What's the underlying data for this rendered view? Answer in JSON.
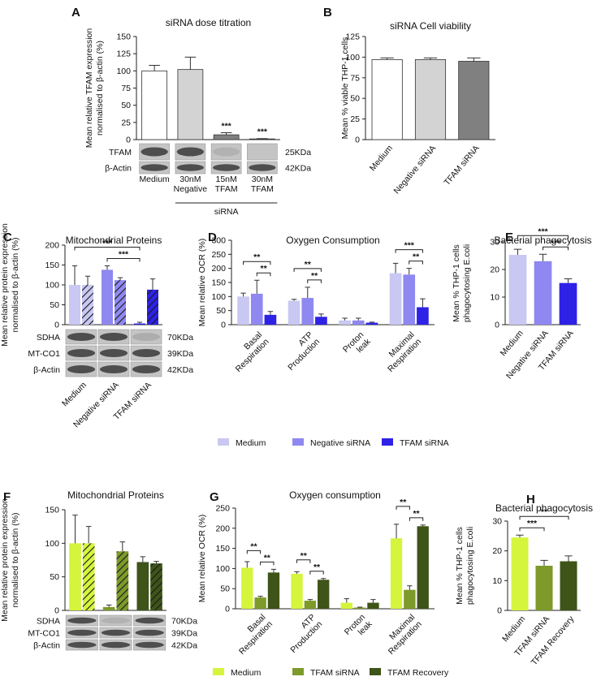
{
  "chart_data": [
    {
      "type": "bar",
      "panel": "A",
      "title": "siRNA dose titration",
      "ylabel": [
        "Mean relative TFAM expression",
        "normalised to β-actin (%)"
      ],
      "categories": [
        [
          "Medium"
        ],
        [
          "30nM",
          "Negative"
        ],
        [
          "15nM",
          "TFAM"
        ],
        [
          "30nM",
          "TFAM"
        ]
      ],
      "group_label": "siRNA",
      "colors": [
        "#ffffff",
        "#d3d3d3",
        "#808080",
        "#404040"
      ],
      "series": [
        {
          "values": [
            100,
            102,
            7,
            1
          ],
          "errors": [
            8,
            18,
            3,
            0.5
          ],
          "significance": [
            null,
            null,
            "***",
            "***"
          ]
        }
      ],
      "ylim": [
        0,
        150
      ],
      "yticks": [
        0,
        25,
        50,
        75,
        100,
        125,
        150
      ],
      "blot": {
        "rows": [
          "TFAM",
          "β-Actin"
        ],
        "sizes": [
          "25KDa",
          "42KDa"
        ]
      }
    },
    {
      "type": "bar",
      "panel": "B",
      "title": "siRNA Cell viability",
      "ylabel": [
        "Mean % viable THP-1 cells"
      ],
      "categories": [
        [
          "Medium"
        ],
        [
          "Negative siRNA"
        ],
        [
          "TFAM siRNA"
        ]
      ],
      "colors": [
        "#ffffff",
        "#d3d3d3",
        "#808080"
      ],
      "series": [
        {
          "values": [
            97,
            97,
            95
          ],
          "errors": [
            2,
            2,
            4
          ]
        }
      ],
      "ylim": [
        0,
        125
      ],
      "yticks": [
        0,
        25,
        50,
        75,
        100,
        125
      ]
    },
    {
      "type": "bar",
      "panel": "C",
      "title": "Mitochondrial Proteins",
      "ylabel": [
        "Mean relative protein expression",
        "normalised to β-actin (%)"
      ],
      "categories": [
        [
          "Medium"
        ],
        [
          "Negative siRNA"
        ],
        [
          "TFAM siRNA"
        ]
      ],
      "colors": [
        "#c8c8f2",
        "#8f88f0",
        "#2d22e6"
      ],
      "series": [
        {
          "values": [
            100,
            138,
            3
          ],
          "errors": [
            48,
            10,
            3
          ]
        },
        {
          "hatch": true,
          "values": [
            100,
            112,
            88
          ],
          "errors": [
            22,
            6,
            27
          ]
        }
      ],
      "brackets": [
        {
          "from": [
            1,
            0
          ],
          "to": [
            2,
            0
          ],
          "label": "***"
        },
        {
          "from": [
            0,
            0
          ],
          "to": [
            2,
            0
          ],
          "label": "***"
        }
      ],
      "ylim": [
        0,
        200
      ],
      "yticks": [
        0,
        50,
        100,
        150,
        200
      ],
      "blot": {
        "rows": [
          "SDHA",
          "MT-CO1",
          "β-Actin"
        ],
        "sizes": [
          "70KDa",
          "39KDa",
          "42KDa"
        ]
      }
    },
    {
      "type": "bar",
      "panel": "D",
      "title": "Oxygen Consumption",
      "ylabel": [
        "Mean relative OCR (%)"
      ],
      "categories": [
        [
          "Basal",
          "Respiration"
        ],
        [
          "ATP",
          "Production"
        ],
        [
          "Proton",
          "leak"
        ],
        [
          "Maximal",
          "Respiration"
        ]
      ],
      "series": [
        {
          "name": "Medium",
          "color": "#c8c8f2",
          "values": [
            100,
            85,
            15,
            183
          ],
          "errors": [
            12,
            5,
            8,
            35
          ]
        },
        {
          "name": "Negative siRNA",
          "color": "#8f88f0",
          "values": [
            110,
            95,
            15,
            178
          ],
          "errors": [
            48,
            38,
            8,
            22
          ]
        },
        {
          "name": "TFAM siRNA",
          "color": "#2d22e6",
          "values": [
            35,
            28,
            7,
            62
          ],
          "errors": [
            12,
            10,
            2,
            30
          ]
        }
      ],
      "brackets": [
        {
          "from": [
            0,
            1
          ],
          "to": [
            0,
            2
          ],
          "label": "**"
        },
        {
          "from": [
            0,
            0
          ],
          "to": [
            0,
            2
          ],
          "label": "**"
        },
        {
          "from": [
            1,
            1
          ],
          "to": [
            1,
            2
          ],
          "label": "**"
        },
        {
          "from": [
            1,
            0
          ],
          "to": [
            1,
            2
          ],
          "label": "**"
        },
        {
          "from": [
            3,
            1
          ],
          "to": [
            3,
            2
          ],
          "label": "**"
        },
        {
          "from": [
            3,
            0
          ],
          "to": [
            3,
            2
          ],
          "label": "***"
        }
      ],
      "ylim": [
        0,
        300
      ],
      "yticks": [
        0,
        50,
        100,
        150,
        200,
        250,
        300
      ],
      "legend": true
    },
    {
      "type": "bar",
      "panel": "E",
      "title": "Bacterial phagocytosis",
      "ylabel": [
        "Mean % THP-1 cells",
        "phagocytosing E.coli"
      ],
      "categories": [
        [
          "Medium"
        ],
        [
          "Negative siRNA"
        ],
        [
          "TFAM siRNA"
        ]
      ],
      "colors": [
        "#c8c8f2",
        "#8f88f0",
        "#2d22e6"
      ],
      "series": [
        {
          "values": [
            25.3,
            23,
            15.1
          ],
          "errors": [
            2,
            2.5,
            1.5
          ]
        }
      ],
      "brackets": [
        {
          "from": [
            1,
            0
          ],
          "to": [
            2,
            0
          ],
          "label": "***"
        },
        {
          "from": [
            0,
            0
          ],
          "to": [
            2,
            0
          ],
          "label": "***"
        }
      ],
      "ylim": [
        0,
        30
      ],
      "yticks": [
        0,
        10,
        20,
        30
      ]
    },
    {
      "type": "bar",
      "panel": "F",
      "title": "Mitochondrial Proteins",
      "ylabel": [
        "Mean relative protein expression",
        "normalised to β-actin (%)"
      ],
      "categories": [
        null,
        null,
        null
      ],
      "colors": [
        "#d4f53c",
        "#7d9a2a",
        "#3e5418"
      ],
      "series": [
        {
          "values": [
            100,
            5,
            72
          ],
          "errors": [
            42,
            3,
            8
          ]
        },
        {
          "hatch": true,
          "values": [
            100,
            88,
            70
          ],
          "errors": [
            25,
            14,
            3
          ]
        }
      ],
      "ylim": [
        0,
        150
      ],
      "yticks": [
        0,
        50,
        100,
        150
      ],
      "blot": {
        "rows": [
          "SDHA",
          "MT-CO1",
          "β-Actin"
        ],
        "sizes": [
          "70KDa",
          "39KDa",
          "42KDa"
        ]
      }
    },
    {
      "type": "bar",
      "panel": "G",
      "title": "Oxygen consumption",
      "ylabel": [
        "Mean relative OCR (%)"
      ],
      "categories": [
        [
          "Basal",
          "Respiration"
        ],
        [
          "ATP",
          "Production"
        ],
        [
          "Proton",
          "leak"
        ],
        [
          "Maximal",
          "Respiration"
        ]
      ],
      "series": [
        {
          "name": "Medium",
          "color": "#d4f53c",
          "values": [
            102,
            87,
            15,
            175
          ],
          "errors": [
            15,
            5,
            10,
            35
          ]
        },
        {
          "name": "TFAM siRNA",
          "color": "#7d9a2a",
          "values": [
            28,
            20,
            3,
            47
          ],
          "errors": [
            3,
            3,
            1,
            10
          ]
        },
        {
          "name": "TFAM Recovery",
          "color": "#3e5418",
          "values": [
            90,
            72,
            15,
            205
          ],
          "errors": [
            8,
            3,
            8,
            3
          ]
        }
      ],
      "brackets": [
        {
          "from": [
            0,
            1
          ],
          "to": [
            0,
            2
          ],
          "label": "**"
        },
        {
          "from": [
            0,
            0
          ],
          "to": [
            0,
            1
          ],
          "label": "**"
        },
        {
          "from": [
            1,
            1
          ],
          "to": [
            1,
            2
          ],
          "label": "**"
        },
        {
          "from": [
            1,
            0
          ],
          "to": [
            1,
            1
          ],
          "label": "**"
        },
        {
          "from": [
            3,
            1
          ],
          "to": [
            3,
            2
          ],
          "label": "**"
        },
        {
          "from": [
            3,
            0
          ],
          "to": [
            3,
            1
          ],
          "label": "**"
        }
      ],
      "ylim": [
        0,
        250
      ],
      "yticks": [
        0,
        50,
        100,
        150,
        200,
        250
      ],
      "legend": true
    },
    {
      "type": "bar",
      "panel": "H",
      "title": "Bacterial phagocytosis",
      "ylabel": [
        "Mean % THP-1 cells",
        "phagocytosing E.coli"
      ],
      "categories": [
        [
          "Medium"
        ],
        [
          "TFAM siRNA"
        ],
        [
          "TFAM Recovery"
        ]
      ],
      "colors": [
        "#d4f53c",
        "#7d9a2a",
        "#3e5418"
      ],
      "series": [
        {
          "values": [
            24.5,
            15,
            16.5
          ],
          "errors": [
            0.8,
            1.8,
            1.8
          ]
        }
      ],
      "brackets": [
        {
          "from": [
            0,
            0
          ],
          "to": [
            1,
            0
          ],
          "label": "***"
        },
        {
          "from": [
            0,
            0
          ],
          "to": [
            2,
            0
          ],
          "label": "**"
        }
      ],
      "ylim": [
        0,
        30
      ],
      "yticks": [
        0,
        10,
        20,
        30
      ]
    }
  ]
}
